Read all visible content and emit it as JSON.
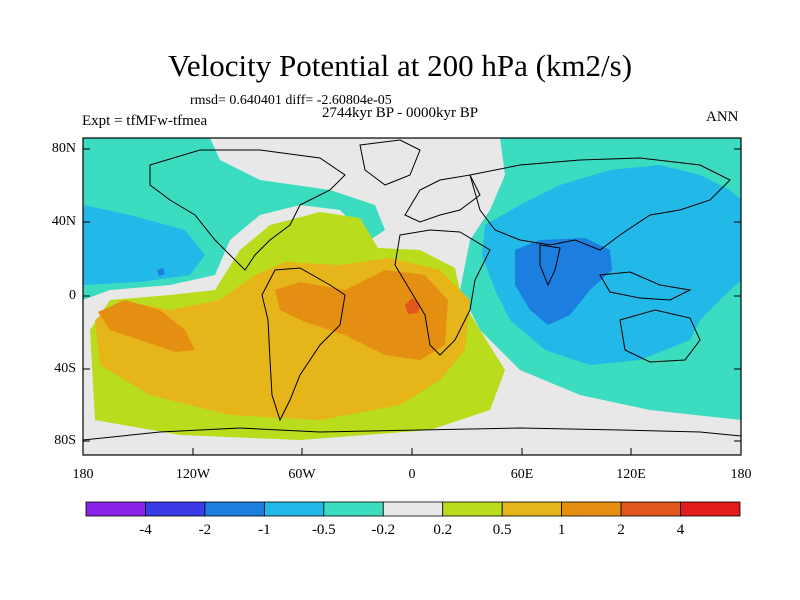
{
  "title": "Velocity Potential at 200 hPa (km2/s)",
  "stats": "rmsd= 0.640401 diff= -2.60804e-05",
  "period": "2744kyr BP - 0000kyr BP",
  "experiment": "Expt = tfMFw-tfmea",
  "season": "ANN",
  "lat_labels": [
    "80N",
    "40N",
    "0",
    "40S",
    "80S"
  ],
  "lon_labels": [
    "180",
    "120W",
    "60W",
    "0",
    "60E",
    "120E",
    "180"
  ],
  "colorbar": {
    "labels": [
      "-4",
      "-2",
      "-1",
      "-0.5",
      "-0.2",
      "0.2",
      "0.5",
      "1",
      "2",
      "4"
    ],
    "colors": [
      "#8a22e8",
      "#3a3ae6",
      "#1c7fe0",
      "#22b8e8",
      "#3cdcc0",
      "#e8e8e8",
      "#b9dc1c",
      "#e6b51a",
      "#e58f12",
      "#e0561c",
      "#e01c1c"
    ]
  },
  "fields": {
    "background": "#3cdcc0",
    "neutral": "#e8e8e8",
    "pos_weak": "#b9dc1c",
    "pos_mid": "#e6b51a",
    "pos_strong": "#e58f12",
    "pos_max": "#e0561c",
    "neg_weak": "#22b8e8",
    "neg_mid": "#1c7fe0"
  }
}
